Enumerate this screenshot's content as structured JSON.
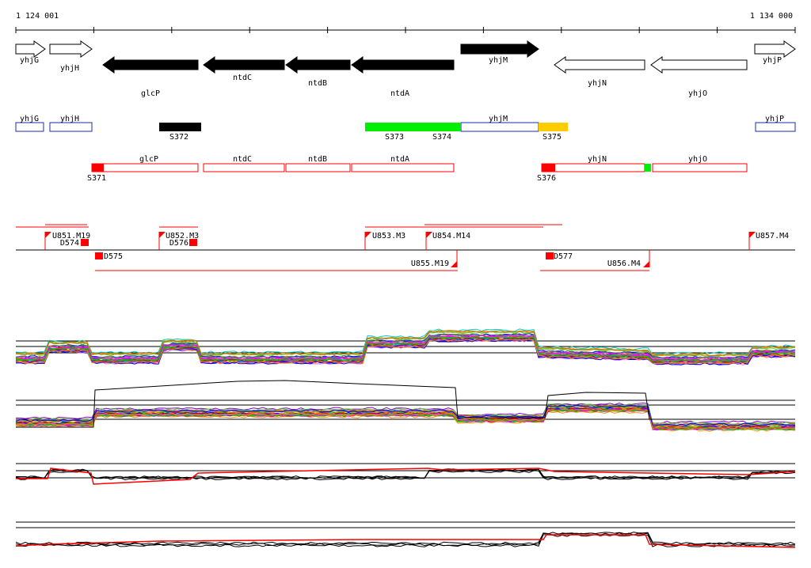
{
  "coordinates": {
    "start_label": "1 124 001",
    "end_label": "1 134 000"
  },
  "colors": {
    "gene_fill": "#000000",
    "gene_outline": "#000000",
    "upshift_segment": "#ff0000",
    "expressed_segment": "#00ee00",
    "downshift_segment": "#ffcc00",
    "blue_segment": "#1a2bb0",
    "red_segment": "#ff0000",
    "upshift_marker": "#ff0000",
    "trace_a": "#000000",
    "trace_b": "#ff0000"
  },
  "genes": [
    {
      "name": "yhjG",
      "strand": "+",
      "filled": false
    },
    {
      "name": "yhjH",
      "strand": "+",
      "filled": false
    },
    {
      "name": "glcP",
      "strand": "-",
      "filled": true
    },
    {
      "name": "ntdC",
      "strand": "-",
      "filled": true
    },
    {
      "name": "ntdB",
      "strand": "-",
      "filled": true
    },
    {
      "name": "ntdA",
      "strand": "-",
      "filled": true
    },
    {
      "name": "yhjM",
      "strand": "+",
      "filled": true
    },
    {
      "name": "yhjN",
      "strand": "-",
      "filled": false
    },
    {
      "name": "yhjO",
      "strand": "-",
      "filled": false
    },
    {
      "name": "yhjP",
      "strand": "+",
      "filled": false
    }
  ],
  "blue_transcripts": [
    {
      "label": "yhjG"
    },
    {
      "label": "yhjH"
    },
    {
      "label": "yhjM"
    },
    {
      "label": "yhjP"
    }
  ],
  "blue_segments": [
    {
      "label": "S372",
      "kind": "filled"
    },
    {
      "label": "S373",
      "kind": "expressed"
    },
    {
      "label": "S374",
      "kind": "expressed"
    },
    {
      "label": "S375",
      "kind": "downshift"
    }
  ],
  "red_transcripts": [
    {
      "label": "glcP"
    },
    {
      "label": "ntdC"
    },
    {
      "label": "ntdB"
    },
    {
      "label": "ntdA"
    },
    {
      "label": "yhjN"
    },
    {
      "label": "yhjO"
    }
  ],
  "red_segments": [
    {
      "label": "S371",
      "kind": "upshift"
    },
    {
      "label": "S376",
      "kind": "upshift"
    },
    {
      "label": "",
      "kind": "expressed"
    }
  ],
  "upshifts": [
    {
      "label": "U851.M19"
    },
    {
      "label": "U852.M3"
    },
    {
      "label": "U853.M3"
    },
    {
      "label": "U854.M14"
    },
    {
      "label": "U857.M4"
    },
    {
      "label": "U855.M19"
    },
    {
      "label": "U856.M4"
    }
  ],
  "downshifts": [
    {
      "label": "D574"
    },
    {
      "label": "D576"
    },
    {
      "label": "D575"
    },
    {
      "label": "D577"
    }
  ]
}
